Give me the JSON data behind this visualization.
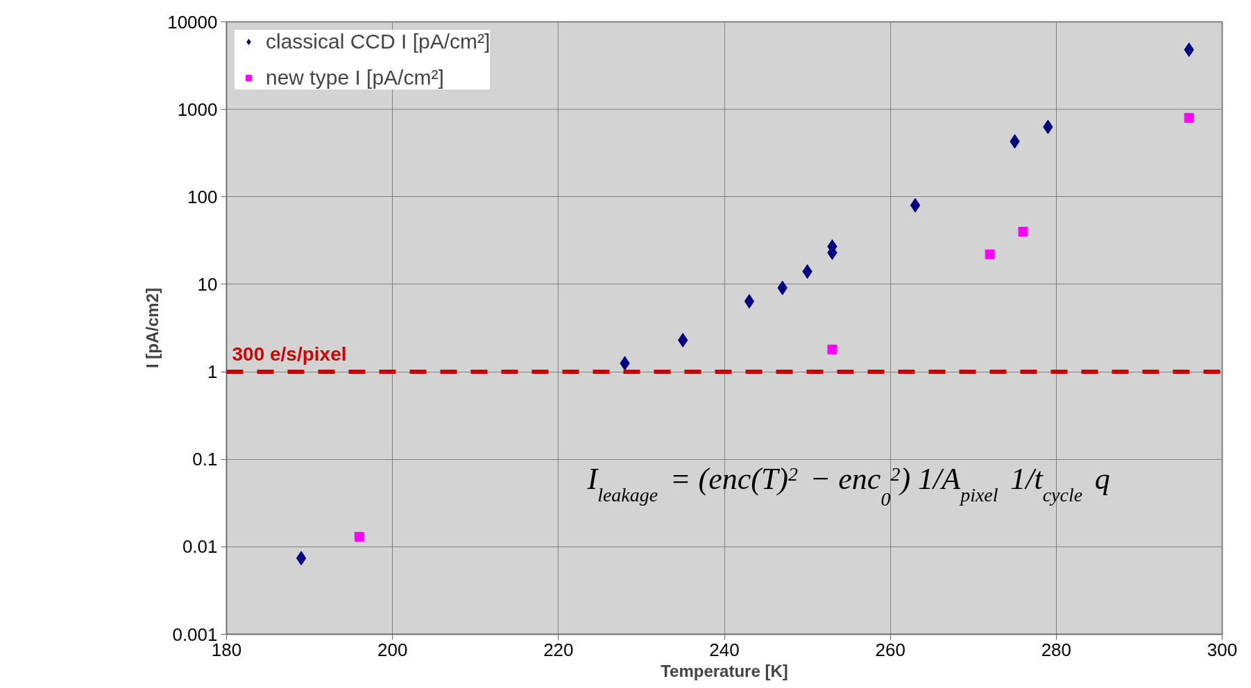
{
  "chart_data": {
    "type": "scatter",
    "xlabel": "Temperature [K]",
    "ylabel": "I [pA/cm2]",
    "xlim": [
      180,
      300
    ],
    "xticks": [
      180,
      200,
      220,
      240,
      260,
      280,
      300
    ],
    "ylim": [
      0.001,
      10000
    ],
    "yticks": [
      0.001,
      0.01,
      0.1,
      1,
      10,
      100,
      1000,
      10000
    ],
    "log": "y",
    "grid": true,
    "legend": "top left",
    "series": [
      {
        "name": "classical CCD I [pA/cm²]",
        "color": "#000080",
        "marker": "diamond",
        "x": [
          189,
          228,
          235,
          243,
          247,
          250,
          253,
          253,
          263,
          275,
          279,
          296
        ],
        "values": [
          0.0074,
          1.25,
          2.3,
          6.4,
          9.1,
          14,
          27,
          23,
          80,
          430,
          630,
          4800
        ]
      },
      {
        "name": "new type I [pA/cm²]",
        "color": "#ff00ff",
        "marker": "square",
        "x": [
          196,
          253,
          272,
          276,
          296
        ],
        "values": [
          0.013,
          1.8,
          22,
          40,
          800
        ]
      }
    ],
    "ref_lines": [
      {
        "axis": "y",
        "value": 1,
        "label": "300 e/s/pixel",
        "color": "#cc0000",
        "line_style": "dashed"
      }
    ],
    "annotations": [
      "I$_{leakage}$ = (enc(T)$^{2}$ − enc$_{0}$$^{2}$) 1/A$_{pixel}$ 1/t$_{cycle}$ q"
    ]
  }
}
